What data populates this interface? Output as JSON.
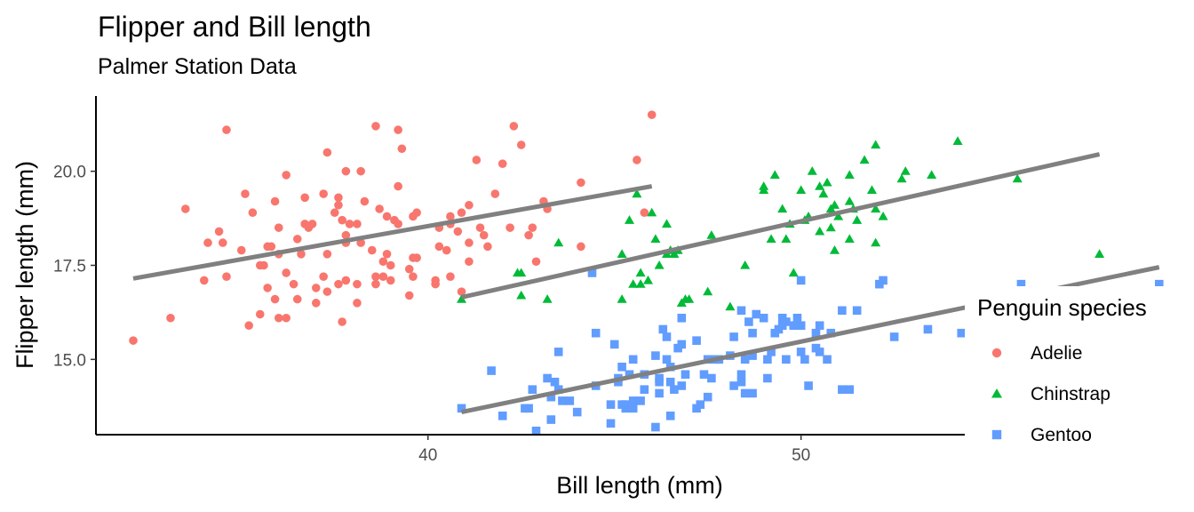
{
  "chart_data": {
    "type": "scatter",
    "title": "Flipper and Bill length",
    "subtitle": "Palmer Station Data",
    "xlabel": "Bill length (mm)",
    "ylabel": "Flipper length (mm)",
    "xlim": [
      31.1,
      60.2
    ],
    "ylim": [
      13.0,
      22.0
    ],
    "x_ticks": [
      40,
      50
    ],
    "y_ticks": [
      15.0,
      17.5,
      20.0
    ],
    "x_tick_labels": [
      "40",
      "50"
    ],
    "y_tick_labels": [
      "15.0",
      "17.5",
      "20.0"
    ],
    "grid": false,
    "legend": {
      "title": "Penguin species",
      "position": "right",
      "items": [
        "Adelie",
        "Chinstrap",
        "Gentoo"
      ]
    },
    "colors": {
      "Adelie": "#F8766D",
      "Chinstrap": "#00BA38",
      "Gentoo": "#619CFF",
      "trend": "#808080"
    },
    "series": [
      {
        "name": "Adelie",
        "marker": "circle",
        "fit": {
          "x": [
            32.1,
            46.0
          ],
          "y": [
            17.15,
            19.6
          ]
        },
        "points": [
          [
            32.1,
            15.5
          ],
          [
            33.1,
            16.1
          ],
          [
            33.5,
            19.0
          ],
          [
            34.0,
            17.1
          ],
          [
            34.1,
            18.1
          ],
          [
            34.4,
            18.4
          ],
          [
            34.5,
            18.1
          ],
          [
            34.6,
            17.2
          ],
          [
            34.6,
            21.1
          ],
          [
            35.0,
            17.9
          ],
          [
            35.1,
            19.4
          ],
          [
            35.2,
            15.9
          ],
          [
            35.3,
            18.9
          ],
          [
            35.5,
            16.2
          ],
          [
            35.5,
            17.5
          ],
          [
            35.6,
            17.5
          ],
          [
            35.7,
            16.9
          ],
          [
            35.7,
            18.0
          ],
          [
            35.8,
            18.0
          ],
          [
            35.9,
            16.6
          ],
          [
            35.9,
            19.2
          ],
          [
            36.0,
            16.1
          ],
          [
            36.0,
            17.8
          ],
          [
            36.0,
            18.5
          ],
          [
            36.2,
            16.1
          ],
          [
            36.2,
            17.3
          ],
          [
            36.2,
            19.9
          ],
          [
            36.4,
            17.0
          ],
          [
            36.5,
            16.6
          ],
          [
            36.5,
            18.2
          ],
          [
            36.6,
            17.8
          ],
          [
            36.7,
            18.6
          ],
          [
            36.7,
            19.3
          ],
          [
            36.8,
            18.5
          ],
          [
            36.9,
            18.6
          ],
          [
            37.0,
            16.5
          ],
          [
            37.0,
            16.9
          ],
          [
            37.2,
            17.2
          ],
          [
            37.2,
            19.4
          ],
          [
            37.3,
            16.8
          ],
          [
            37.3,
            17.8
          ],
          [
            37.3,
            20.5
          ],
          [
            37.5,
            18.9
          ],
          [
            37.6,
            17.0
          ],
          [
            37.6,
            19.1
          ],
          [
            37.6,
            19.3
          ],
          [
            37.7,
            16.0
          ],
          [
            37.7,
            18.7
          ],
          [
            37.8,
            17.1
          ],
          [
            37.8,
            18.1
          ],
          [
            37.8,
            18.3
          ],
          [
            37.8,
            20.0
          ],
          [
            37.9,
            18.6
          ],
          [
            38.1,
            16.5
          ],
          [
            38.1,
            17.0
          ],
          [
            38.1,
            18.6
          ],
          [
            38.2,
            18.1
          ],
          [
            38.2,
            20.0
          ],
          [
            38.3,
            19.2
          ],
          [
            38.5,
            17.9
          ],
          [
            38.6,
            17.0
          ],
          [
            38.6,
            17.2
          ],
          [
            38.6,
            21.2
          ],
          [
            38.7,
            19.0
          ],
          [
            38.8,
            17.2
          ],
          [
            38.8,
            17.6
          ],
          [
            38.9,
            17.8
          ],
          [
            38.9,
            18.8
          ],
          [
            39.0,
            17.1
          ],
          [
            39.0,
            17.5
          ],
          [
            39.1,
            18.7
          ],
          [
            39.2,
            18.6
          ],
          [
            39.2,
            19.6
          ],
          [
            39.2,
            21.1
          ],
          [
            39.3,
            20.6
          ],
          [
            39.5,
            16.7
          ],
          [
            39.5,
            17.4
          ],
          [
            39.6,
            17.2
          ],
          [
            39.6,
            17.7
          ],
          [
            39.6,
            18.8
          ],
          [
            39.7,
            17.7
          ],
          [
            39.7,
            18.9
          ],
          [
            40.2,
            17.0
          ],
          [
            40.2,
            17.1
          ],
          [
            40.3,
            18.0
          ],
          [
            40.3,
            18.5
          ],
          [
            40.5,
            17.9
          ],
          [
            40.6,
            17.2
          ],
          [
            40.6,
            18.6
          ],
          [
            40.6,
            18.8
          ],
          [
            40.8,
            18.4
          ],
          [
            40.9,
            16.8
          ],
          [
            40.9,
            18.9
          ],
          [
            41.1,
            17.6
          ],
          [
            41.1,
            18.1
          ],
          [
            41.1,
            19.1
          ],
          [
            41.3,
            20.3
          ],
          [
            41.4,
            18.5
          ],
          [
            41.5,
            18.3
          ],
          [
            41.6,
            18.0
          ],
          [
            41.8,
            19.4
          ],
          [
            42.0,
            20.2
          ],
          [
            42.2,
            18.5
          ],
          [
            42.3,
            21.2
          ],
          [
            42.5,
            20.7
          ],
          [
            42.7,
            18.3
          ],
          [
            42.8,
            18.5
          ],
          [
            42.9,
            17.6
          ],
          [
            43.1,
            19.2
          ],
          [
            43.2,
            19.0
          ],
          [
            44.1,
            19.7
          ],
          [
            44.1,
            18.0
          ],
          [
            45.6,
            20.3
          ],
          [
            45.8,
            18.9
          ],
          [
            46.0,
            21.5
          ]
        ]
      },
      {
        "name": "Chinstrap",
        "marker": "triangle",
        "fit": {
          "x": [
            40.9,
            58.0
          ],
          "y": [
            16.65,
            20.45
          ]
        },
        "points": [
          [
            40.9,
            16.6
          ],
          [
            42.4,
            17.3
          ],
          [
            42.5,
            16.7
          ],
          [
            42.5,
            17.3
          ],
          [
            43.2,
            16.6
          ],
          [
            43.5,
            18.1
          ],
          [
            45.2,
            16.6
          ],
          [
            45.2,
            17.8
          ],
          [
            45.4,
            18.7
          ],
          [
            45.5,
            17.0
          ],
          [
            45.6,
            19.4
          ],
          [
            45.7,
            17.0
          ],
          [
            45.7,
            17.3
          ],
          [
            45.9,
            17.1
          ],
          [
            46.0,
            18.9
          ],
          [
            46.1,
            18.2
          ],
          [
            46.2,
            17.5
          ],
          [
            46.4,
            17.8
          ],
          [
            46.4,
            18.6
          ],
          [
            46.5,
            17.9
          ],
          [
            46.6,
            17.8
          ],
          [
            46.7,
            17.9
          ],
          [
            46.8,
            16.5
          ],
          [
            46.9,
            16.6
          ],
          [
            47.0,
            16.6
          ],
          [
            47.5,
            16.8
          ],
          [
            47.6,
            18.3
          ],
          [
            48.1,
            16.4
          ],
          [
            48.5,
            17.5
          ],
          [
            49.0,
            19.5
          ],
          [
            49.0,
            19.6
          ],
          [
            49.2,
            18.2
          ],
          [
            49.3,
            19.9
          ],
          [
            49.5,
            19.0
          ],
          [
            49.6,
            18.2
          ],
          [
            49.7,
            18.6
          ],
          [
            49.8,
            17.3
          ],
          [
            50.0,
            19.5
          ],
          [
            50.1,
            18.7
          ],
          [
            50.2,
            18.8
          ],
          [
            50.3,
            20.0
          ],
          [
            50.5,
            18.4
          ],
          [
            50.5,
            19.6
          ],
          [
            50.6,
            19.4
          ],
          [
            50.7,
            19.7
          ],
          [
            50.8,
            18.5
          ],
          [
            50.8,
            19.0
          ],
          [
            50.9,
            17.9
          ],
          [
            50.9,
            19.1
          ],
          [
            51.0,
            18.8
          ],
          [
            51.3,
            18.2
          ],
          [
            51.3,
            19.2
          ],
          [
            51.3,
            19.9
          ],
          [
            51.4,
            19.0
          ],
          [
            51.5,
            18.7
          ],
          [
            51.7,
            20.3
          ],
          [
            51.9,
            19.5
          ],
          [
            52.0,
            18.1
          ],
          [
            52.0,
            19.0
          ],
          [
            52.0,
            20.7
          ],
          [
            52.2,
            18.8
          ],
          [
            52.7,
            19.8
          ],
          [
            52.8,
            20.0
          ],
          [
            53.5,
            19.9
          ],
          [
            54.2,
            20.8
          ],
          [
            55.8,
            19.8
          ],
          [
            58.0,
            17.8
          ]
        ]
      },
      {
        "name": "Gentoo",
        "marker": "square",
        "fit": {
          "x": [
            40.9,
            59.6
          ],
          "y": [
            13.6,
            17.45
          ]
        },
        "points": [
          [
            40.9,
            13.7
          ],
          [
            41.7,
            14.7
          ],
          [
            42.0,
            13.5
          ],
          [
            42.6,
            13.7
          ],
          [
            42.7,
            13.7
          ],
          [
            42.8,
            14.2
          ],
          [
            42.9,
            13.1
          ],
          [
            43.2,
            14.5
          ],
          [
            43.3,
            13.4
          ],
          [
            43.3,
            14.0
          ],
          [
            43.4,
            14.4
          ],
          [
            43.5,
            14.2
          ],
          [
            43.5,
            15.2
          ],
          [
            43.6,
            13.9
          ],
          [
            43.8,
            13.9
          ],
          [
            44.0,
            13.6
          ],
          [
            44.4,
            17.3
          ],
          [
            44.5,
            14.3
          ],
          [
            44.5,
            15.7
          ],
          [
            44.9,
            13.3
          ],
          [
            44.9,
            13.8
          ],
          [
            45.0,
            15.4
          ],
          [
            45.1,
            14.4
          ],
          [
            45.1,
            14.5
          ],
          [
            45.2,
            13.8
          ],
          [
            45.2,
            14.8
          ],
          [
            45.3,
            13.7
          ],
          [
            45.3,
            13.8
          ],
          [
            45.4,
            14.6
          ],
          [
            45.5,
            13.7
          ],
          [
            45.5,
            13.9
          ],
          [
            45.5,
            15.0
          ],
          [
            45.7,
            13.9
          ],
          [
            45.8,
            14.2
          ],
          [
            45.8,
            14.6
          ],
          [
            46.1,
            13.2
          ],
          [
            46.1,
            15.1
          ],
          [
            46.2,
            14.1
          ],
          [
            46.2,
            14.4
          ],
          [
            46.2,
            14.5
          ],
          [
            46.3,
            15.8
          ],
          [
            46.4,
            15.0
          ],
          [
            46.4,
            15.6
          ],
          [
            46.5,
            13.5
          ],
          [
            46.5,
            14.4
          ],
          [
            46.5,
            14.8
          ],
          [
            46.6,
            14.2
          ],
          [
            46.7,
            15.3
          ],
          [
            46.8,
            14.3
          ],
          [
            46.8,
            15.4
          ],
          [
            46.8,
            16.1
          ],
          [
            46.9,
            14.6
          ],
          [
            47.2,
            13.7
          ],
          [
            47.2,
            15.5
          ],
          [
            47.3,
            13.8
          ],
          [
            47.4,
            14.6
          ],
          [
            47.5,
            14.0
          ],
          [
            47.5,
            15.0
          ],
          [
            47.6,
            14.5
          ],
          [
            47.7,
            15.0
          ],
          [
            47.8,
            15.0
          ],
          [
            48.1,
            15.1
          ],
          [
            48.2,
            14.3
          ],
          [
            48.2,
            15.6
          ],
          [
            48.4,
            14.4
          ],
          [
            48.4,
            14.6
          ],
          [
            48.4,
            16.3
          ],
          [
            48.5,
            14.1
          ],
          [
            48.5,
            15.0
          ],
          [
            48.6,
            16.0
          ],
          [
            48.7,
            14.1
          ],
          [
            48.7,
            15.1
          ],
          [
            48.7,
            15.7
          ],
          [
            48.8,
            16.2
          ],
          [
            49.0,
            16.1
          ],
          [
            49.1,
            14.5
          ],
          [
            49.1,
            15.0
          ],
          [
            49.2,
            15.2
          ],
          [
            49.3,
            15.7
          ],
          [
            49.4,
            15.8
          ],
          [
            49.5,
            15.9
          ],
          [
            49.5,
            16.1
          ],
          [
            49.6,
            15.0
          ],
          [
            49.6,
            16.0
          ],
          [
            49.8,
            15.9
          ],
          [
            49.9,
            16.1
          ],
          [
            50.0,
            15.2
          ],
          [
            50.0,
            15.9
          ],
          [
            50.0,
            17.1
          ],
          [
            50.1,
            15.0
          ],
          [
            50.2,
            14.3
          ],
          [
            50.4,
            15.3
          ],
          [
            50.4,
            15.7
          ],
          [
            50.5,
            15.2
          ],
          [
            50.5,
            15.9
          ],
          [
            50.7,
            15.0
          ],
          [
            50.8,
            15.7
          ],
          [
            51.1,
            14.2
          ],
          [
            51.1,
            16.3
          ],
          [
            51.3,
            14.2
          ],
          [
            51.5,
            16.3
          ],
          [
            52.1,
            17.0
          ],
          [
            52.2,
            17.1
          ],
          [
            52.5,
            15.6
          ],
          [
            53.4,
            15.8
          ],
          [
            54.3,
            15.7
          ],
          [
            55.1,
            16.0
          ],
          [
            55.9,
            17.0
          ],
          [
            59.6,
            17.0
          ]
        ]
      }
    ]
  }
}
